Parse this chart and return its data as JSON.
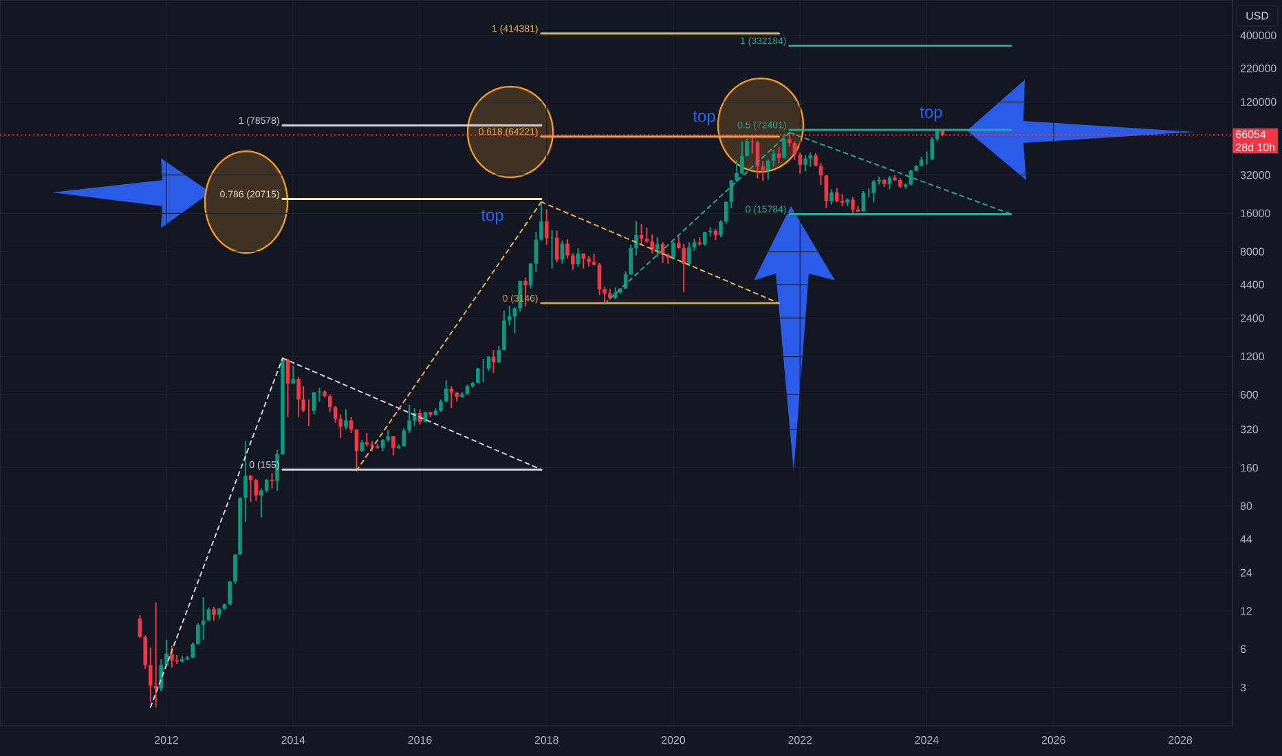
{
  "chart_data": {
    "type": "candlestick",
    "ylabel": "USD",
    "xlim": [
      "2009-05-17",
      "2028-10-29"
    ],
    "xticks": [
      "2012",
      "2014",
      "2016",
      "2018",
      "2020",
      "2022",
      "2024",
      "2026",
      "2028"
    ],
    "ylim": [
      1.5,
      760000
    ],
    "yticks": [
      3,
      6,
      12,
      24,
      44,
      80,
      160,
      320,
      600,
      1200,
      2400,
      4400,
      8000,
      16000,
      32000,
      120000,
      220000,
      400000
    ],
    "log": "y",
    "grid": true,
    "series": [
      {
        "x": [
          "2011-08",
          "2011-09",
          "2011-10",
          "2011-11",
          "2011-12",
          "2012-01",
          "2012-02",
          "2012-03",
          "2012-04",
          "2012-05",
          "2012-06",
          "2012-07",
          "2012-08",
          "2012-09",
          "2012-10",
          "2012-11",
          "2012-12",
          "2013-01",
          "2013-02",
          "2013-03",
          "2013-04",
          "2013-05",
          "2013-06",
          "2013-07",
          "2013-08",
          "2013-09",
          "2013-10",
          "2013-11",
          "2013-12",
          "2014-01",
          "2014-02",
          "2014-03",
          "2014-04",
          "2014-05",
          "2014-06",
          "2014-07",
          "2014-08",
          "2014-09",
          "2014-10",
          "2014-11",
          "2014-12",
          "2015-01",
          "2015-02",
          "2015-03",
          "2015-04",
          "2015-05",
          "2015-06",
          "2015-07",
          "2015-08",
          "2015-09",
          "2015-10",
          "2015-11",
          "2015-12",
          "2016-01",
          "2016-02",
          "2016-03",
          "2016-04",
          "2016-05",
          "2016-06",
          "2016-07",
          "2016-08",
          "2016-09",
          "2016-10",
          "2016-11",
          "2016-12",
          "2017-01",
          "2017-02",
          "2017-03",
          "2017-04",
          "2017-05",
          "2017-06",
          "2017-07",
          "2017-08",
          "2017-09",
          "2017-10",
          "2017-11",
          "2017-12",
          "2018-01",
          "2018-02",
          "2018-03",
          "2018-04",
          "2018-05",
          "2018-06",
          "2018-07",
          "2018-08",
          "2018-09",
          "2018-10",
          "2018-11",
          "2018-12",
          "2019-01",
          "2019-02",
          "2019-03",
          "2019-04",
          "2019-05",
          "2019-06",
          "2019-07",
          "2019-08",
          "2019-09",
          "2019-10",
          "2019-11",
          "2019-12",
          "2020-01",
          "2020-02",
          "2020-03",
          "2020-04",
          "2020-05",
          "2020-06",
          "2020-07",
          "2020-08",
          "2020-09",
          "2020-10",
          "2020-11",
          "2020-12",
          "2021-01",
          "2021-02",
          "2021-03",
          "2021-04",
          "2021-05",
          "2021-06",
          "2021-07",
          "2021-08",
          "2021-09",
          "2021-10",
          "2021-11",
          "2021-12",
          "2022-01",
          "2022-02",
          "2022-03",
          "2022-04",
          "2022-05",
          "2022-06",
          "2022-07",
          "2022-08",
          "2022-09",
          "2022-10",
          "2022-11",
          "2022-12",
          "2023-01",
          "2023-02",
          "2023-03",
          "2023-04",
          "2023-05",
          "2023-06",
          "2023-07",
          "2023-08",
          "2023-09",
          "2023-10",
          "2023-11",
          "2023-12",
          "2024-01",
          "2024-02",
          "2024-03",
          "2024-04"
        ],
        "ohlc": [
          [
            10.4,
            11.1,
            7.3,
            7.5
          ],
          [
            7.5,
            7.7,
            4.2,
            4.5
          ],
          [
            4.5,
            6.2,
            2.3,
            3.1
          ],
          [
            3.1,
            14,
            2.1,
            2.95
          ],
          [
            2.95,
            5.0,
            2.8,
            4.5
          ],
          [
            4.5,
            7.1,
            4.4,
            5.5
          ],
          [
            5.5,
            6.4,
            4.3,
            4.9
          ],
          [
            4.9,
            5.4,
            4.6,
            4.8
          ],
          [
            4.8,
            5.3,
            4.7,
            5.0
          ],
          [
            5.0,
            5.3,
            4.9,
            5.15
          ],
          [
            5.15,
            6.8,
            5.1,
            6.6
          ],
          [
            6.6,
            9.6,
            6.5,
            9.3
          ],
          [
            9.3,
            15.4,
            7.1,
            10.1
          ],
          [
            10.1,
            12.8,
            10.0,
            12.4
          ],
          [
            12.4,
            12.9,
            10.0,
            11.2
          ],
          [
            11.2,
            12.7,
            10.4,
            12.5
          ],
          [
            12.5,
            13.7,
            12.2,
            13.5
          ],
          [
            13.5,
            20.7,
            13.3,
            20.4
          ],
          [
            20.4,
            33.5,
            19.6,
            33.3
          ],
          [
            33.3,
            93.5,
            33.2,
            93
          ],
          [
            93,
            259,
            60,
            139
          ],
          [
            139,
            140,
            86,
            128
          ],
          [
            128,
            130,
            88,
            97
          ],
          [
            97,
            110,
            65,
            106
          ],
          [
            106,
            130,
            102,
            129
          ],
          [
            129,
            145,
            110,
            126
          ],
          [
            126,
            220,
            105,
            204
          ],
          [
            204,
            1163,
            202,
            1129
          ],
          [
            1129,
            1150,
            400,
            732
          ],
          [
            732,
            1020,
            732,
            800
          ],
          [
            800,
            830,
            400,
            550
          ],
          [
            550,
            700,
            440,
            450
          ],
          [
            450,
            550,
            340,
            448
          ],
          [
            448,
            630,
            420,
            627
          ],
          [
            627,
            680,
            530,
            638
          ],
          [
            638,
            650,
            570,
            586
          ],
          [
            586,
            600,
            440,
            480
          ],
          [
            480,
            490,
            360,
            387
          ],
          [
            387,
            420,
            275,
            337
          ],
          [
            337,
            460,
            320,
            377
          ],
          [
            377,
            400,
            300,
            320
          ],
          [
            320,
            320,
            152,
            217
          ],
          [
            217,
            265,
            212,
            254
          ],
          [
            254,
            300,
            235,
            244
          ],
          [
            244,
            260,
            215,
            236
          ],
          [
            236,
            247,
            225,
            230
          ],
          [
            230,
            268,
            215,
            264
          ],
          [
            264,
            316,
            255,
            284
          ],
          [
            284,
            285,
            200,
            229
          ],
          [
            229,
            245,
            225,
            236
          ],
          [
            236,
            330,
            235,
            314
          ],
          [
            314,
            500,
            300,
            377
          ],
          [
            377,
            470,
            340,
            430
          ],
          [
            430,
            460,
            350,
            368
          ],
          [
            368,
            440,
            365,
            437
          ],
          [
            437,
            440,
            400,
            416
          ],
          [
            416,
            470,
            412,
            448
          ],
          [
            448,
            550,
            440,
            531
          ],
          [
            531,
            780,
            520,
            670
          ],
          [
            670,
            700,
            470,
            624
          ],
          [
            624,
            625,
            530,
            575
          ],
          [
            575,
            630,
            570,
            608
          ],
          [
            608,
            720,
            600,
            700
          ],
          [
            700,
            755,
            680,
            742
          ],
          [
            742,
            980,
            740,
            964
          ],
          [
            964,
            1150,
            750,
            965
          ],
          [
            965,
            1210,
            920,
            1190
          ],
          [
            1190,
            1350,
            890,
            1080
          ],
          [
            1080,
            1450,
            1060,
            1350
          ],
          [
            1350,
            2760,
            1340,
            2300
          ],
          [
            2300,
            3000,
            2100,
            2480
          ],
          [
            2480,
            2920,
            1830,
            2870
          ],
          [
            2870,
            4700,
            2700,
            4700
          ],
          [
            4700,
            5000,
            2970,
            4340
          ],
          [
            4340,
            6470,
            4110,
            6440
          ],
          [
            6440,
            11400,
            5500,
            9950
          ],
          [
            9950,
            19666,
            9700,
            13850
          ],
          [
            13850,
            17200,
            9000,
            10200
          ],
          [
            10200,
            11800,
            5900,
            10300
          ],
          [
            10300,
            11700,
            6600,
            6930
          ],
          [
            6930,
            9770,
            6430,
            9240
          ],
          [
            9240,
            9990,
            7050,
            7490
          ],
          [
            7490,
            7780,
            5750,
            6390
          ],
          [
            6390,
            8500,
            6070,
            7730
          ],
          [
            7730,
            7750,
            5880,
            7030
          ],
          [
            7030,
            7400,
            6100,
            6630
          ],
          [
            6630,
            7700,
            6200,
            6320
          ],
          [
            6320,
            6550,
            3650,
            4040
          ],
          [
            4040,
            4240,
            3120,
            3740
          ],
          [
            3740,
            4100,
            3350,
            3460
          ],
          [
            3460,
            4200,
            3380,
            3810
          ],
          [
            3810,
            4140,
            3700,
            4100
          ],
          [
            4100,
            5600,
            4070,
            5300
          ],
          [
            5300,
            9100,
            5250,
            8550
          ],
          [
            8550,
            13880,
            7450,
            10800
          ],
          [
            10800,
            13200,
            9080,
            10080
          ],
          [
            10080,
            12330,
            9400,
            9600
          ],
          [
            9600,
            10900,
            7750,
            8300
          ],
          [
            8300,
            10400,
            7300,
            9150
          ],
          [
            9150,
            9500,
            6520,
            7540
          ],
          [
            7540,
            7750,
            6430,
            7190
          ],
          [
            7190,
            9580,
            6850,
            9350
          ],
          [
            9350,
            10500,
            8450,
            8540
          ],
          [
            8540,
            9200,
            3850,
            6410
          ],
          [
            6410,
            9480,
            6150,
            8630
          ],
          [
            8630,
            10080,
            8100,
            9450
          ],
          [
            9450,
            10380,
            8900,
            9140
          ],
          [
            9140,
            11450,
            8900,
            11350
          ],
          [
            11350,
            12470,
            10520,
            11650
          ],
          [
            11650,
            12090,
            9850,
            10780
          ],
          [
            10780,
            14100,
            10400,
            13800
          ],
          [
            13800,
            19900,
            13200,
            19700
          ],
          [
            19700,
            29300,
            17600,
            28990
          ],
          [
            28990,
            41950,
            28100,
            33100
          ],
          [
            33100,
            58350,
            32300,
            45200
          ],
          [
            45200,
            61780,
            44950,
            58800
          ],
          [
            58800,
            64900,
            47000,
            57700
          ],
          [
            57700,
            59500,
            30000,
            37300
          ],
          [
            37300,
            41300,
            28800,
            35000
          ],
          [
            35000,
            42400,
            29300,
            41500
          ],
          [
            41500,
            50500,
            37300,
            47100
          ],
          [
            47100,
            52900,
            39600,
            43800
          ],
          [
            43800,
            67000,
            43300,
            61300
          ],
          [
            61300,
            69000,
            53500,
            57000
          ],
          [
            57000,
            59050,
            42000,
            46200
          ],
          [
            46200,
            47950,
            32900,
            38500
          ],
          [
            38500,
            45800,
            34300,
            43200
          ],
          [
            43200,
            48200,
            37150,
            45500
          ],
          [
            45500,
            47450,
            37550,
            37650
          ],
          [
            37650,
            40000,
            26700,
            31800
          ],
          [
            31800,
            31900,
            17600,
            19950
          ],
          [
            19950,
            24650,
            18800,
            23300
          ],
          [
            23300,
            25200,
            19550,
            20050
          ],
          [
            20050,
            22800,
            18150,
            19420
          ],
          [
            19420,
            20990,
            18200,
            20490
          ],
          [
            20490,
            21450,
            15500,
            17160
          ],
          [
            17160,
            18400,
            16300,
            16550
          ],
          [
            16550,
            23950,
            16500,
            23130
          ],
          [
            23130,
            25250,
            21400,
            23150
          ],
          [
            23150,
            29200,
            19550,
            28460
          ],
          [
            28460,
            31050,
            26900,
            29250
          ],
          [
            29250,
            29850,
            25800,
            27200
          ],
          [
            27200,
            31400,
            24800,
            30470
          ],
          [
            30470,
            31850,
            28850,
            29230
          ],
          [
            29230,
            30250,
            25300,
            25940
          ],
          [
            25940,
            27500,
            24900,
            26960
          ],
          [
            26960,
            35200,
            26550,
            34650
          ],
          [
            34650,
            38450,
            34100,
            37720
          ],
          [
            37720,
            44750,
            37600,
            42280
          ],
          [
            42280,
            49000,
            38500,
            42580
          ],
          [
            42580,
            63900,
            41880,
            61130
          ],
          [
            61130,
            73800,
            59000,
            71300
          ],
          [
            71300,
            71300,
            64500,
            66054
          ]
        ],
        "colors": [
          "#f23645",
          "#f23645",
          "#f23645",
          "#f23645",
          "#089981",
          "#089981",
          "#f23645",
          "#f23645",
          "#089981",
          "#089981",
          "#089981",
          "#089981",
          "#089981",
          "#089981",
          "#f23645",
          "#089981",
          "#089981",
          "#089981",
          "#089981",
          "#089981",
          "#089981",
          "#f23645",
          "#f23645",
          "#089981",
          "#089981",
          "#f23645",
          "#089981",
          "#089981",
          "#f23645",
          "#089981",
          "#f23645",
          "#f23645",
          "#f23645",
          "#089981",
          "#089981",
          "#f23645",
          "#f23645",
          "#f23645",
          "#f23645",
          "#089981",
          "#f23645",
          "#f23645",
          "#089981",
          "#f23645",
          "#f23645",
          "#f23645",
          "#089981",
          "#089981",
          "#f23645",
          "#089981",
          "#089981",
          "#089981",
          "#089981",
          "#f23645",
          "#089981",
          "#f23645",
          "#089981",
          "#089981",
          "#089981",
          "#f23645",
          "#f23645",
          "#089981",
          "#089981",
          "#089981",
          "#089981",
          "#089981",
          "#089981",
          "#f23645",
          "#089981",
          "#089981",
          "#089981",
          "#089981",
          "#089981",
          "#f23645",
          "#089981",
          "#089981",
          "#089981",
          "#f23645",
          "#089981",
          "#f23645",
          "#089981",
          "#f23645",
          "#f23645",
          "#089981",
          "#f23645",
          "#f23645",
          "#f23645",
          "#f23645",
          "#f23645",
          "#f23645",
          "#089981",
          "#089981",
          "#089981",
          "#089981",
          "#089981",
          "#f23645",
          "#f23645",
          "#f23645",
          "#089981",
          "#f23645",
          "#f23645",
          "#089981",
          "#f23645",
          "#f23645",
          "#089981",
          "#089981",
          "#f23645",
          "#089981",
          "#089981",
          "#f23645",
          "#089981",
          "#089981",
          "#089981",
          "#089981",
          "#089981",
          "#089981",
          "#f23645",
          "#f23645",
          "#f23645",
          "#089981",
          "#089981",
          "#f23645",
          "#089981",
          "#f23645",
          "#f23645",
          "#f23645",
          "#089981",
          "#089981",
          "#f23645",
          "#f23645",
          "#f23645",
          "#089981",
          "#f23645",
          "#f23645",
          "#089981",
          "#f23645",
          "#f23645",
          "#089981",
          "#089981",
          "#089981",
          "#089981",
          "#f23645",
          "#089981",
          "#f23645",
          "#f23645",
          "#089981",
          "#089981",
          "#089981",
          "#089981",
          "#089981",
          "#089981",
          "#089981",
          "#f23645"
        ]
      },
      {
        "type": "line",
        "x": [
          "2011-10",
          "2013-11"
        ],
        "values": [
          2.1,
          1163
        ],
        "color": "#d1d4dc",
        "line_style": "dashed"
      },
      {
        "type": "line",
        "x": [
          "2013-11",
          "2017-12"
        ],
        "values": [
          1163,
          155
        ],
        "color": "#d1d4dc",
        "line_style": "dashed"
      },
      {
        "type": "line",
        "name": "1 (78578)",
        "x": [
          "2013-11",
          "2017-12"
        ],
        "values": [
          78578,
          78578
        ],
        "color": "#d1d4dc"
      },
      {
        "type": "line",
        "name": "0.786 (20715)",
        "x": [
          "2013-11",
          "2017-12"
        ],
        "values": [
          20715,
          20715
        ],
        "color": "#efe3c8"
      },
      {
        "type": "line",
        "name": "0 (155)",
        "x": [
          "2013-11",
          "2017-12"
        ],
        "values": [
          155,
          155
        ],
        "color": "#d1d4dc"
      },
      {
        "type": "line",
        "x": [
          "2015-01",
          "2017-12"
        ],
        "values": [
          152,
          19666
        ],
        "color": "#e9b44c",
        "line_style": "dashed"
      },
      {
        "type": "line",
        "x": [
          "2017-12",
          "2021-09"
        ],
        "values": [
          19666,
          3146
        ],
        "color": "#e9b44c",
        "line_style": "dashed"
      },
      {
        "type": "line",
        "name": "1 (414381)",
        "x": [
          "2017-12",
          "2021-09"
        ],
        "values": [
          414381,
          414381
        ],
        "color": "#e9b44c"
      },
      {
        "type": "line",
        "name": "0.618 (64221)",
        "x": [
          "2017-12",
          "2021-09"
        ],
        "values": [
          64221,
          64221
        ],
        "color": "#f5a623"
      },
      {
        "type": "line",
        "name": "0 (3146)",
        "x": [
          "2017-12",
          "2021-09"
        ],
        "values": [
          3146,
          3146
        ],
        "color": "#c9a64a"
      },
      {
        "type": "line",
        "x": [
          "2018-12",
          "2021-11"
        ],
        "values": [
          3120,
          69000
        ],
        "color": "#22ab94",
        "line_style": "dashed"
      },
      {
        "type": "line",
        "x": [
          "2021-11",
          "2025-05"
        ],
        "values": [
          69000,
          15784
        ],
        "color": "#22ab94",
        "line_style": "dashed"
      },
      {
        "type": "line",
        "name": "1 (332184)",
        "x": [
          "2021-11",
          "2025-05"
        ],
        "values": [
          332184,
          332184
        ],
        "color": "#22ab94"
      },
      {
        "type": "line",
        "name": "0.5 (72401)",
        "x": [
          "2021-11",
          "2025-05"
        ],
        "values": [
          72401,
          72401
        ],
        "color": "#22ab94"
      },
      {
        "type": "line",
        "name": "0 (15784)",
        "x": [
          "2021-11",
          "2025-05"
        ],
        "values": [
          15784,
          15784
        ],
        "color": "#22ab94"
      }
    ],
    "ref_lines": [
      {
        "axis": "y",
        "value": 66054,
        "label": "66054",
        "color": "#f23645",
        "line_style": "dotted"
      }
    ],
    "annotations": [
      "top",
      "top",
      "top",
      "28d 10h"
    ]
  }
}
